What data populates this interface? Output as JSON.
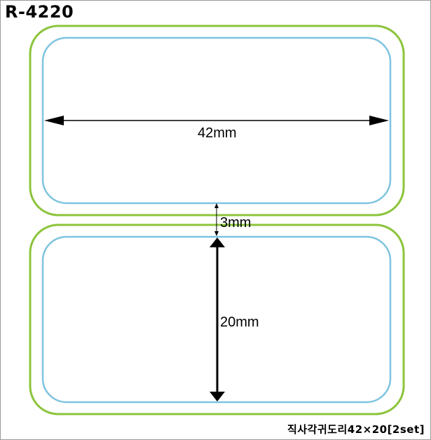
{
  "model_code": "R-4220",
  "product_name": "직사각귀도리42×20[2set]",
  "dimensions": {
    "width": "42mm",
    "gap": "3mm",
    "height": "20mm"
  },
  "colors": {
    "outer_outline": "#8cc43c",
    "inner_outline": "#7ec4e0",
    "dimension_lines": "#000000"
  }
}
